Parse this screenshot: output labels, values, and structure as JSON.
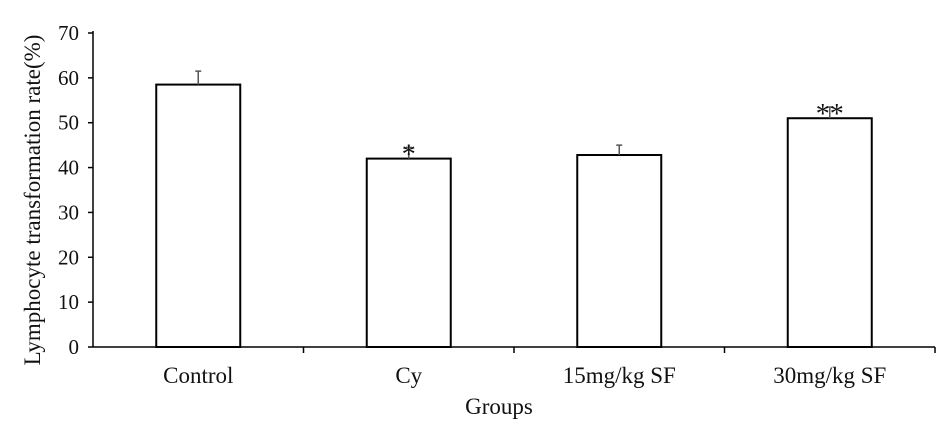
{
  "chart_data": {
    "type": "bar",
    "xlabel": "Groups",
    "ylabel": "Lymphocyte transformation rate(%)",
    "ylim": [
      0,
      70
    ],
    "yticks": [
      0,
      10,
      20,
      30,
      40,
      50,
      60,
      70
    ],
    "grid": false,
    "categories": [
      "Control",
      "Cy",
      "15mg/kg SF",
      "30mg/kg SF"
    ],
    "series": [
      {
        "values": [
          58.5,
          42,
          42.8,
          51
        ],
        "errors": [
          3,
          2.5,
          2.2,
          2.5
        ],
        "fill": "#ffffff",
        "stroke": "#000000"
      }
    ],
    "annotations": [
      "",
      "*",
      "",
      "**"
    ]
  }
}
